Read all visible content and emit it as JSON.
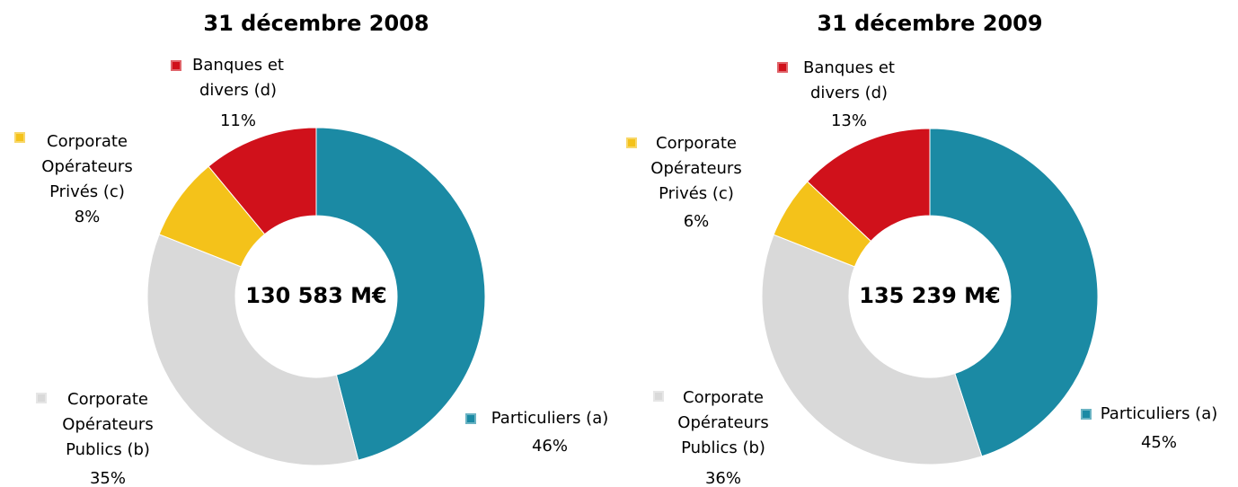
{
  "chart_data": [
    {
      "type": "pie",
      "title": "31 décembre 2008",
      "center_label": "130 583 M€",
      "categories": [
        "Particuliers (a)",
        "Corporate Opérateurs Publics (b)",
        "Corporate Opérateurs Privés (c)",
        "Banques et divers (d)"
      ],
      "values": [
        46,
        35,
        8,
        11
      ],
      "value_labels": [
        "46%",
        "35%",
        "8%",
        "11%"
      ],
      "colors": [
        "#1b8aa4",
        "#d9d9d9",
        "#f4c21a",
        "#d0111b"
      ]
    },
    {
      "type": "pie",
      "title": "31 décembre 2009",
      "center_label": "135 239 M€",
      "categories": [
        "Particuliers (a)",
        "Corporate Opérateurs Publics (b)",
        "Corporate Opérateurs Privés (c)",
        "Banques et divers (d)"
      ],
      "values": [
        45,
        36,
        6,
        13
      ],
      "value_labels": [
        "45%",
        "36%",
        "6%",
        "13%"
      ],
      "colors": [
        "#1b8aa4",
        "#d9d9d9",
        "#f4c21a",
        "#d0111b"
      ]
    }
  ]
}
